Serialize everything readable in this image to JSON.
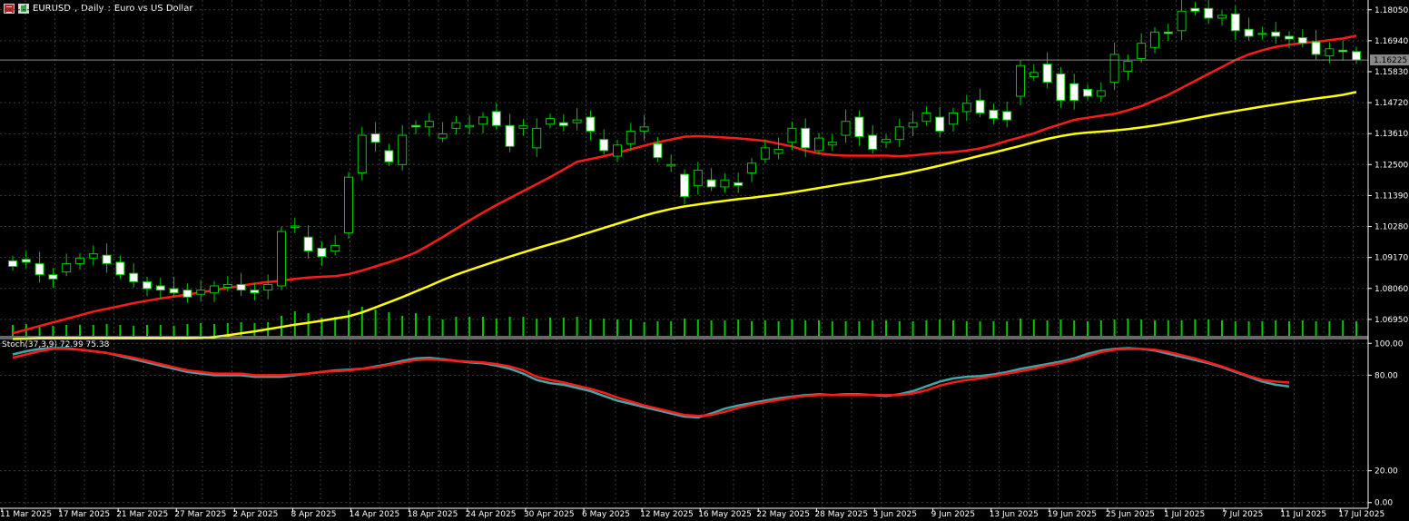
{
  "header": {
    "symbol": "EURUSD",
    "timeframe": "Daily",
    "description": "Euro vs US Dollar"
  },
  "price_tag": "1.16225",
  "indicator_label": "Stoch(37,3,9) 72.99 75.38",
  "colors": {
    "background": "#000000",
    "grid": "#3a3a3a",
    "axis": "#ffffff",
    "bull_candle": "#000000",
    "bear_candle": "#ffffff",
    "wick": "#00c800",
    "ma_fast": "#ff1a1a",
    "ma_slow": "#ffff00",
    "volume": "#00c800",
    "stoch_main": "#41a6a6",
    "stoch_signal": "#ff1a1a"
  },
  "chart_data": [
    {
      "type": "candlestick",
      "title": "EURUSD, Daily: Euro vs US Dollar",
      "y_ticks": [
        "1.18050",
        "1.16940",
        "1.15830",
        "1.14720",
        "1.13610",
        "1.12500",
        "1.11390",
        "1.10280",
        "1.09170",
        "1.08060",
        "1.06950"
      ],
      "x_ticks": [
        "11 Mar 2025",
        "17 Mar 2025",
        "21 Mar 2025",
        "27 Mar 2025",
        "2 Apr 2025",
        "8 Apr 2025",
        "14 Apr 2025",
        "18 Apr 2025",
        "24 Apr 2025",
        "30 Apr 2025",
        "6 May 2025",
        "12 May 2025",
        "16 May 2025",
        "22 May 2025",
        "28 May 2025",
        "3 Jun 2025",
        "9 Jun 2025",
        "13 Jun 2025",
        "19 Jun 2025",
        "25 Jun 2025",
        "1 Jul 2025",
        "7 Jul 2025",
        "11 Jul 2025",
        "17 Jul 2025"
      ],
      "ylim": [
        1.0636,
        1.184
      ],
      "grid": true,
      "series": [
        {
          "kind": "ohlc",
          "open": [
            1.0905,
            1.091,
            1.0895,
            1.0855,
            1.0865,
            1.0895,
            1.0915,
            1.0925,
            1.09,
            1.086,
            1.083,
            1.0815,
            1.0805,
            1.08,
            1.0785,
            1.079,
            1.081,
            1.082,
            1.08,
            1.08,
            1.0815,
            1.1025,
            1.099,
            1.095,
            1.094,
            1.1005,
            1.122,
            1.136,
            1.13,
            1.125,
            1.139,
            1.1385,
            1.1345,
            1.138,
            1.1385,
            1.1395,
            1.144,
            1.139,
            1.138,
            1.131,
            1.1395,
            1.14,
            1.14,
            1.142,
            1.134,
            1.128,
            1.1325,
            1.137,
            1.1325,
            1.1245,
            1.1215,
            1.1175,
            1.1195,
            1.117,
            1.1185,
            1.122,
            1.127,
            1.129,
            1.133,
            1.138,
            1.13,
            1.132,
            1.1355,
            1.142,
            1.1355,
            1.133,
            1.134,
            1.1385,
            1.1405,
            1.142,
            1.1395,
            1.144,
            1.148,
            1.1445,
            1.144,
            1.1495,
            1.1565,
            1.161,
            1.1575,
            1.154,
            1.152,
            1.1495,
            1.1545,
            1.1585,
            1.163,
            1.167,
            1.1725,
            1.173,
            1.181,
            1.181,
            1.1775,
            1.179,
            1.1735,
            1.172,
            1.1725,
            1.171,
            1.1705,
            1.169,
            1.164,
            1.166,
            1.1655
          ],
          "close": [
            1.0885,
            1.09,
            1.0855,
            1.084,
            1.0895,
            1.0915,
            1.093,
            1.0895,
            1.0855,
            1.083,
            1.0805,
            1.08,
            1.079,
            1.0775,
            1.08,
            1.0815,
            1.082,
            1.08,
            1.079,
            1.082,
            1.101,
            1.103,
            1.094,
            1.092,
            1.096,
            1.1205,
            1.1355,
            1.133,
            1.126,
            1.1355,
            1.1385,
            1.1405,
            1.136,
            1.14,
            1.139,
            1.142,
            1.139,
            1.1315,
            1.139,
            1.138,
            1.1415,
            1.139,
            1.141,
            1.137,
            1.13,
            1.132,
            1.137,
            1.1385,
            1.1275,
            1.125,
            1.1135,
            1.123,
            1.117,
            1.1195,
            1.1175,
            1.1255,
            1.131,
            1.1305,
            1.138,
            1.131,
            1.1345,
            1.133,
            1.1405,
            1.135,
            1.1305,
            1.134,
            1.1385,
            1.14,
            1.1435,
            1.137,
            1.1435,
            1.147,
            1.1435,
            1.1415,
            1.141,
            1.1605,
            1.158,
            1.1545,
            1.148,
            1.148,
            1.1495,
            1.1515,
            1.1645,
            1.162,
            1.1685,
            1.1725,
            1.172,
            1.18,
            1.18,
            1.1775,
            1.1785,
            1.173,
            1.171,
            1.172,
            1.171,
            1.17,
            1.1685,
            1.1645,
            1.1665,
            1.1655,
            1.1625
          ]
        },
        {
          "name": "",
          "kind": "line",
          "values": [
            1.0645,
            1.0658,
            1.0671,
            1.0684,
            1.0697,
            1.071,
            1.0723,
            1.0733,
            1.0743,
            1.0753,
            1.0762,
            1.077,
            1.0777,
            1.0784,
            1.0792,
            1.08,
            1.0808,
            1.0816,
            1.0823,
            1.0829,
            1.0834,
            1.084,
            1.0845,
            1.0848,
            1.085,
            1.0857,
            1.087,
            1.0885,
            1.09,
            1.0916,
            1.0935,
            1.0962,
            1.099,
            1.102,
            1.105,
            1.1078,
            1.1105,
            1.113,
            1.1155,
            1.118,
            1.1205,
            1.1232,
            1.126,
            1.127,
            1.128,
            1.1292,
            1.1305,
            1.1318,
            1.133,
            1.134,
            1.135,
            1.1352,
            1.135,
            1.1347,
            1.1344,
            1.134,
            1.1335,
            1.1325,
            1.1315,
            1.13,
            1.129,
            1.1285,
            1.1282,
            1.1282,
            1.1282,
            1.1282,
            1.128,
            1.1283,
            1.1288,
            1.1292,
            1.1295,
            1.13,
            1.1308,
            1.132,
            1.1335,
            1.1348,
            1.1362,
            1.138,
            1.1395,
            1.141,
            1.1418,
            1.1425,
            1.1432,
            1.1445,
            1.146,
            1.148,
            1.15,
            1.1525,
            1.155,
            1.1575,
            1.16,
            1.1625,
            1.1645,
            1.166,
            1.1672,
            1.168,
            1.1686,
            1.169,
            1.1696,
            1.1702,
            1.1712
          ]
        },
        {
          "name": "",
          "kind": "line",
          "values": [
            1.0625,
            1.0626,
            1.0627,
            1.0627,
            1.0627,
            1.0627,
            1.0627,
            1.0627,
            1.0627,
            1.0627,
            1.0627,
            1.0627,
            1.0627,
            1.0627,
            1.0628,
            1.0632,
            1.0638,
            1.0645,
            1.0652,
            1.066,
            1.0668,
            1.0676,
            1.0683,
            1.069,
            1.0698,
            1.0706,
            1.072,
            1.0738,
            1.0756,
            1.0775,
            1.0795,
            1.0815,
            1.0836,
            1.0855,
            1.0872,
            1.0888,
            1.0904,
            1.092,
            1.0935,
            1.095,
            1.0964,
            1.0978,
            1.0993,
            1.1008,
            1.1023,
            1.1038,
            1.1053,
            1.1067,
            1.108,
            1.1091,
            1.11,
            1.1107,
            1.1114,
            1.112,
            1.1126,
            1.1131,
            1.1137,
            1.1143,
            1.115,
            1.1158,
            1.1166,
            1.1174,
            1.1182,
            1.119,
            1.1198,
            1.1207,
            1.1215,
            1.1225,
            1.1235,
            1.1246,
            1.1258,
            1.127,
            1.1282,
            1.1293,
            1.1305,
            1.1317,
            1.133,
            1.1342,
            1.1352,
            1.136,
            1.1365,
            1.1368,
            1.1372,
            1.1377,
            1.1383,
            1.139,
            1.1398,
            1.1407,
            1.1416,
            1.1425,
            1.1434,
            1.1442,
            1.145,
            1.1458,
            1.1465,
            1.1473,
            1.148,
            1.1487,
            1.1493,
            1.15,
            1.151
          ]
        },
        {
          "name": "",
          "kind": "volume",
          "values": [
            12,
            13,
            12,
            11,
            12,
            12,
            12,
            13,
            12,
            11,
            12,
            12,
            11,
            13,
            14,
            13,
            14,
            15,
            14,
            15,
            22,
            27,
            25,
            20,
            21,
            28,
            32,
            29,
            26,
            22,
            25,
            22,
            18,
            21,
            21,
            21,
            19,
            21,
            21,
            19,
            20,
            20,
            21,
            18,
            19,
            18,
            18,
            15,
            16,
            16,
            19,
            18,
            17,
            17,
            18,
            16,
            17,
            16,
            18,
            17,
            17,
            16,
            16,
            16,
            17,
            17,
            16,
            16,
            17,
            18,
            17,
            16,
            16,
            16,
            16,
            19,
            18,
            17,
            18,
            17,
            16,
            17,
            18,
            19,
            18,
            17,
            17,
            17,
            18,
            18,
            17,
            16,
            16,
            16,
            17,
            16,
            17,
            16,
            16,
            17,
            16
          ]
        }
      ]
    },
    {
      "type": "line",
      "title": "Stoch(37,3,9) 72.99 75.38",
      "y_ticks": [
        "100.00",
        "80.00",
        "20.00",
        "0.00"
      ],
      "ylim": [
        -3,
        103
      ],
      "series": [
        {
          "name": "",
          "values": [
            93,
            95,
            96.5,
            97,
            97,
            96,
            95,
            94,
            92,
            90,
            88,
            86,
            84,
            82,
            81,
            80,
            80,
            80,
            79,
            79,
            79,
            80,
            81,
            82,
            83,
            83.5,
            84,
            85.5,
            87,
            89,
            90.5,
            91,
            90,
            89,
            88,
            87.5,
            86,
            84,
            81,
            77,
            75,
            74,
            72,
            70,
            67,
            64,
            62,
            60,
            58,
            56,
            54,
            53.5,
            56,
            59,
            61,
            62.5,
            64,
            65.5,
            66.5,
            67.5,
            68,
            67.5,
            68,
            68,
            67.5,
            67,
            68,
            70,
            73,
            76,
            78,
            79,
            79.5,
            80.5,
            82,
            84,
            85.5,
            87,
            88.5,
            90.5,
            93.5,
            95.5,
            96.5,
            97,
            96.5,
            95.5,
            93.5,
            91.5,
            89.5,
            87.5,
            85,
            82,
            79,
            76,
            74,
            72.99
          ]
        },
        {
          "name": "",
          "values": [
            91,
            93,
            95,
            96.5,
            96.5,
            96,
            95,
            94,
            92.5,
            91,
            89,
            87,
            85,
            83,
            82,
            81,
            81,
            81,
            80,
            80,
            80,
            80.5,
            81,
            82,
            82.5,
            83,
            84,
            85,
            86.5,
            88,
            89.5,
            90,
            89.5,
            89,
            88.5,
            88,
            87,
            85.5,
            83,
            79,
            77,
            75.5,
            73.5,
            71.5,
            69,
            66,
            63.5,
            61,
            59,
            57,
            55,
            54.5,
            55,
            57,
            59.5,
            61.5,
            63,
            64.5,
            66,
            67,
            67.5,
            67.5,
            67.5,
            67.5,
            67.5,
            67.5,
            67.5,
            68.5,
            70.5,
            73.5,
            75.5,
            77,
            78,
            79.5,
            81,
            82.5,
            84,
            86,
            87.5,
            89.5,
            92,
            94.5,
            96,
            96.5,
            96.5,
            96,
            94.5,
            92.5,
            90.5,
            88,
            85.5,
            82.5,
            79.5,
            77,
            76,
            75.38
          ]
        }
      ]
    }
  ]
}
